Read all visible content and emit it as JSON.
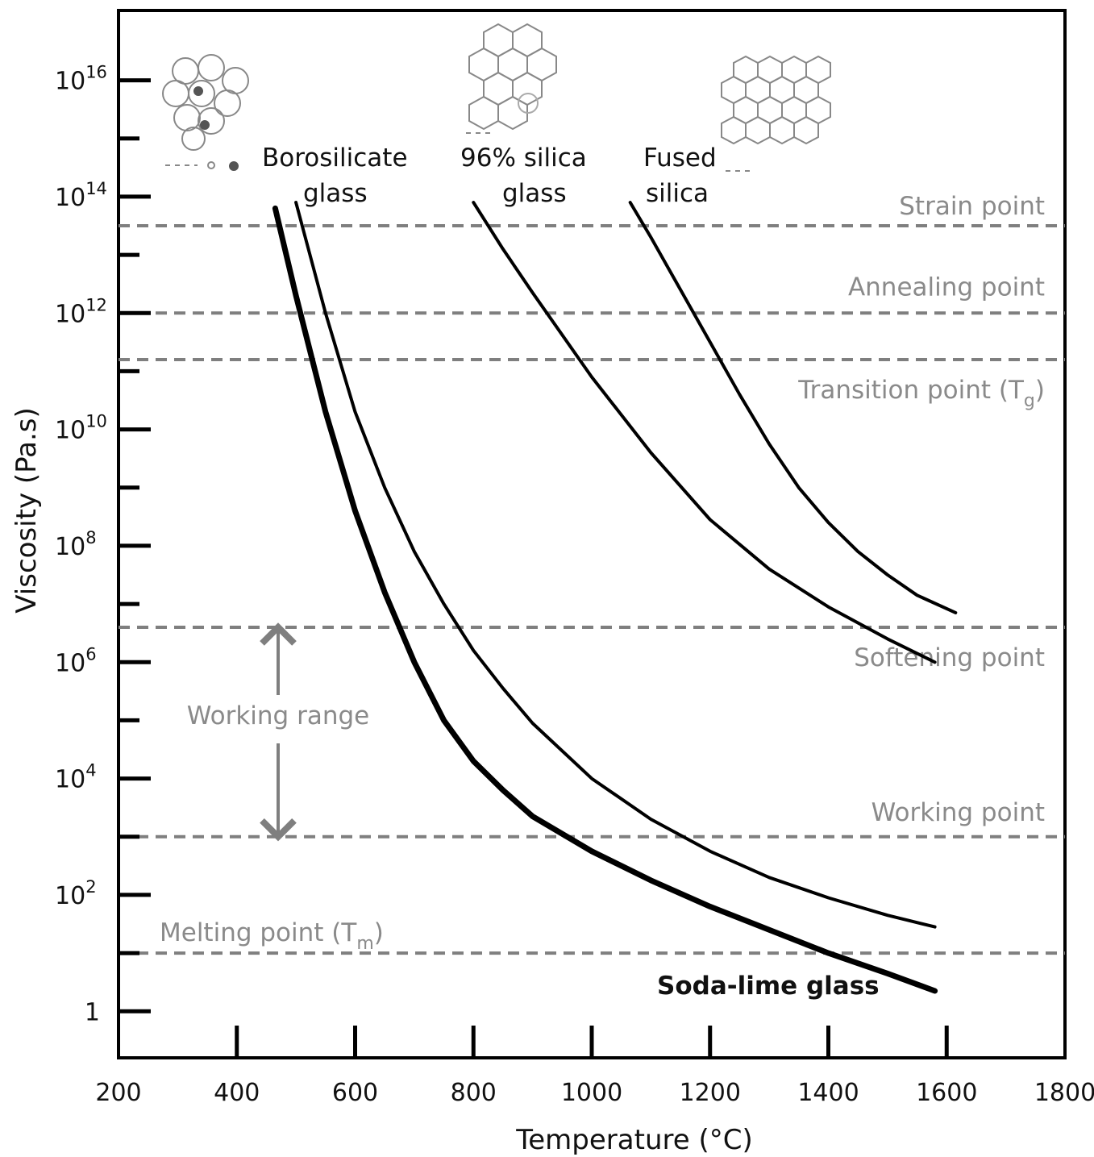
{
  "chart_data": {
    "type": "line",
    "xlabel": "Temperature (°C)",
    "ylabel": "Viscosity (Pa.s)",
    "xlim": [
      200,
      1800
    ],
    "ylim_log10": [
      -0.8,
      17.2
    ],
    "y_scale": "log",
    "x_ticks": [
      200,
      400,
      600,
      800,
      1000,
      1200,
      1400,
      1600,
      1800
    ],
    "y_ticks": [
      {
        "exp": 0,
        "base": "1",
        "sup": ""
      },
      {
        "exp": 2,
        "base": "10",
        "sup": "2"
      },
      {
        "exp": 4,
        "base": "10",
        "sup": "4"
      },
      {
        "exp": 6,
        "base": "10",
        "sup": "6"
      },
      {
        "exp": 8,
        "base": "10",
        "sup": "8"
      },
      {
        "exp": 10,
        "base": "10",
        "sup": "10"
      },
      {
        "exp": 12,
        "base": "10",
        "sup": "12"
      },
      {
        "exp": 14,
        "base": "10",
        "sup": "14"
      },
      {
        "exp": 16,
        "base": "10",
        "sup": "16"
      }
    ],
    "series": [
      {
        "name": "Soda-lime glass",
        "color": "#000000",
        "points": [
          [
            465,
            13.8
          ],
          [
            500,
            12.3
          ],
          [
            550,
            10.3
          ],
          [
            600,
            8.6
          ],
          [
            650,
            7.2
          ],
          [
            700,
            6.0
          ],
          [
            750,
            5.0
          ],
          [
            800,
            4.3
          ],
          [
            850,
            3.8
          ],
          [
            900,
            3.35
          ],
          [
            1000,
            2.75
          ],
          [
            1100,
            2.25
          ],
          [
            1200,
            1.8
          ],
          [
            1300,
            1.4
          ],
          [
            1400,
            1.0
          ],
          [
            1500,
            0.65
          ],
          [
            1580,
            0.35
          ]
        ]
      },
      {
        "name": "Borosilicate glass",
        "color": "#000000",
        "points": [
          [
            500,
            13.9
          ],
          [
            550,
            12.0
          ],
          [
            600,
            10.3
          ],
          [
            650,
            9.0
          ],
          [
            700,
            7.9
          ],
          [
            750,
            7.0
          ],
          [
            800,
            6.2
          ],
          [
            850,
            5.55
          ],
          [
            900,
            4.95
          ],
          [
            1000,
            4.0
          ],
          [
            1100,
            3.3
          ],
          [
            1200,
            2.75
          ],
          [
            1300,
            2.3
          ],
          [
            1400,
            1.95
          ],
          [
            1500,
            1.65
          ],
          [
            1580,
            1.45
          ]
        ]
      },
      {
        "name": "96% silica glass",
        "color": "#000000",
        "points": [
          [
            800,
            13.9
          ],
          [
            850,
            13.1
          ],
          [
            900,
            12.35
          ],
          [
            1000,
            10.9
          ],
          [
            1100,
            9.6
          ],
          [
            1200,
            8.45
          ],
          [
            1300,
            7.6
          ],
          [
            1400,
            6.95
          ],
          [
            1500,
            6.4
          ],
          [
            1580,
            6.0
          ]
        ]
      },
      {
        "name": "Fused silica",
        "color": "#000000",
        "points": [
          [
            1065,
            13.9
          ],
          [
            1100,
            13.3
          ],
          [
            1150,
            12.4
          ],
          [
            1200,
            11.5
          ],
          [
            1250,
            10.6
          ],
          [
            1300,
            9.75
          ],
          [
            1350,
            9.0
          ],
          [
            1400,
            8.4
          ],
          [
            1450,
            7.9
          ],
          [
            1500,
            7.5
          ],
          [
            1550,
            7.15
          ],
          [
            1615,
            6.85
          ]
        ]
      }
    ],
    "series_labels": [
      {
        "lines": [
          "Borosilicate",
          "glass"
        ]
      },
      {
        "lines": [
          "96% silica",
          "glass"
        ]
      },
      {
        "lines": [
          "Fused",
          "silica"
        ]
      },
      {
        "lines": [
          "Soda-lime glass"
        ]
      }
    ],
    "reference_lines": [
      {
        "label": "Strain point",
        "log10_viscosity": 13.5
      },
      {
        "label": "Annealing point",
        "log10_viscosity": 12.0
      },
      {
        "label": "Transition point (T",
        "sub": "g",
        "suffix": ")",
        "log10_viscosity": 11.2
      },
      {
        "label": "Softening point",
        "log10_viscosity": 6.6
      },
      {
        "label": "Working point",
        "log10_viscosity": 3.0
      },
      {
        "label": "Melting point (T",
        "sub": "m",
        "suffix": ")",
        "log10_viscosity": 1.0
      }
    ],
    "working_range": {
      "label": "Working range",
      "from_log10": 6.6,
      "to_log10": 3.0,
      "x": 480
    },
    "colors": {
      "curve": "#000000",
      "reference": "#7f7f7f",
      "label_gray": "#8a8a8a"
    }
  }
}
